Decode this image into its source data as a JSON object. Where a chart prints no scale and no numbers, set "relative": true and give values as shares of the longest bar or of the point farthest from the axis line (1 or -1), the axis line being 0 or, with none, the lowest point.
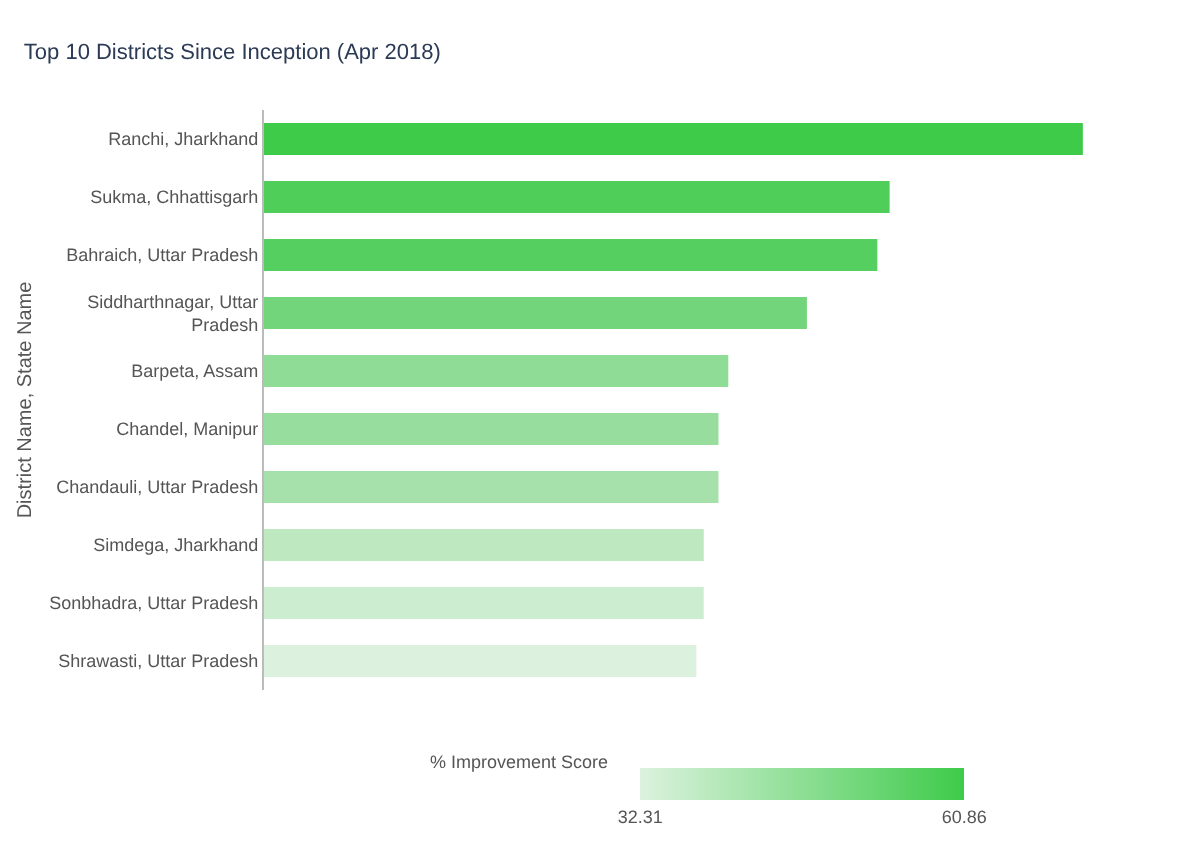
{
  "chart_data": {
    "type": "bar",
    "orientation": "horizontal",
    "title": "Top 10 Districts Since Inception (Apr 2018)",
    "ylabel": "District Name, State Name",
    "categories": [
      "Ranchi, Jharkhand",
      "Sukma, Chhattisgarh",
      "Bahraich, Uttar Pradesh",
      "Siddharthnagar, Uttar Pradesh",
      "Barpeta, Assam",
      "Chandel, Manipur",
      "Chandauli, Uttar Pradesh",
      "Simdega, Jharkhand",
      "Sonbhadra, Uttar Pradesh",
      "Shrawasti, Uttar Pradesh"
    ],
    "relative": true,
    "values": [
      1,
      0.764,
      0.749,
      0.663,
      0.567,
      0.555,
      0.555,
      0.537,
      0.537,
      0.528
    ],
    "colors": [
      "#3ecb4a",
      "#4fce5a",
      "#55d060",
      "#72d57c",
      "#8fdc97",
      "#97dd9e",
      "#a6e1ab",
      "#bde8c0",
      "#cdedd0",
      "#dcf2de"
    ],
    "tick_labels": "y",
    "clabel": "% Improvement Score",
    "clim": [
      32.31,
      60.86
    ],
    "cticks": [
      32.31,
      60.86
    ]
  }
}
